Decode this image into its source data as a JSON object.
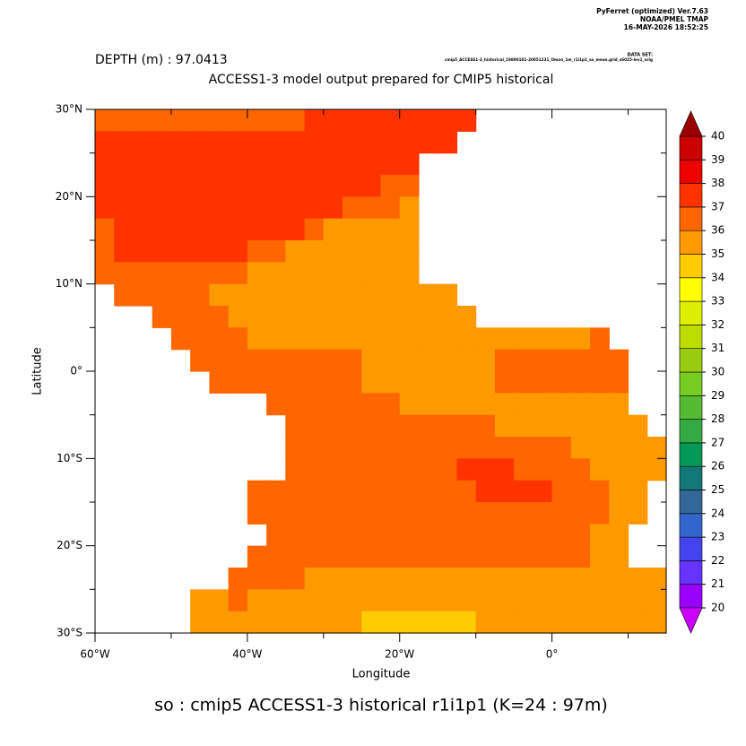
{
  "chart_data": {
    "type": "heatmap",
    "header": [
      "PyFerret (optimized) Ver.7.63",
      "NOAA/PMEL TMAP",
      "16-MAY-2026 18:52:25"
    ],
    "dataset_label": "DATA SET:",
    "dataset": "cmip5_ACCESS1-3_historical_19890101-20051231_Omon_1m_r1i1p1_so_mean.grid_s6025-lev1_orig",
    "subtitle": "DEPTH (m) : 97.0413",
    "title": "ACCESS1-3 model output prepared for CMIP5 historical",
    "xlabel": "Longitude",
    "ylabel": "Latitude",
    "footer": "so : cmip5 ACCESS1-3 historical r1i1p1   (K=24 : 97m)",
    "xlim": [
      -60,
      15
    ],
    "ylim": [
      -30,
      30
    ],
    "xticks": [
      {
        "value": -60,
        "label": "60°W"
      },
      {
        "value": -40,
        "label": "40°W"
      },
      {
        "value": -20,
        "label": "20°W"
      },
      {
        "value": 0,
        "label": "0°"
      }
    ],
    "xminor": [
      -50,
      -30,
      -10,
      10
    ],
    "yticks": [
      {
        "value": 30,
        "label": "30°N"
      },
      {
        "value": 20,
        "label": "20°N"
      },
      {
        "value": 10,
        "label": "10°N"
      },
      {
        "value": 0,
        "label": "0°"
      },
      {
        "value": -10,
        "label": "10°S"
      },
      {
        "value": -20,
        "label": "20°S"
      },
      {
        "value": -30,
        "label": "30°S"
      }
    ],
    "yminor": [
      25,
      15,
      5,
      -5,
      -15,
      -25
    ],
    "x": [
      -58.75,
      -56.25,
      -53.75,
      -51.25,
      -48.75,
      -46.25,
      -43.75,
      -41.25,
      -38.75,
      -36.25,
      -33.75,
      -31.25,
      -28.75,
      -26.25,
      -23.75,
      -21.25,
      -18.75,
      -16.25,
      -13.75,
      -11.25,
      -8.75,
      -6.25,
      -3.75,
      -1.25,
      1.25,
      3.75,
      6.25,
      8.75,
      11.25,
      13.75
    ],
    "y": [
      28.75,
      26.25,
      23.75,
      21.25,
      18.75,
      16.25,
      13.75,
      11.25,
      8.75,
      6.25,
      3.75,
      1.25,
      -1.25,
      -3.75,
      -6.25,
      -8.75,
      -11.25,
      -13.75,
      -16.25,
      -18.75,
      -21.25,
      -23.75,
      -26.25,
      -28.75
    ],
    "z": [
      [
        36.5,
        36.5,
        36.5,
        36.5,
        36.5,
        36.5,
        36.5,
        36.5,
        36.5,
        36.5,
        36.5,
        37.5,
        37.5,
        37.5,
        37.5,
        37.5,
        37.5,
        37.5,
        37.5,
        37.5,
        null,
        null,
        null,
        null,
        null,
        null,
        null,
        null,
        null,
        null
      ],
      [
        37.5,
        37.5,
        37.5,
        37.5,
        37.5,
        37.5,
        37.5,
        37.5,
        37.5,
        37.5,
        37.5,
        37.5,
        37.5,
        37.5,
        37.5,
        37.5,
        37.5,
        37.5,
        37.5,
        null,
        null,
        null,
        null,
        null,
        null,
        null,
        null,
        null,
        null,
        null
      ],
      [
        37.5,
        37.5,
        37.5,
        37.5,
        37.5,
        37.5,
        37.5,
        37.5,
        37.5,
        37.5,
        37.5,
        37.5,
        37.5,
        37.5,
        37.5,
        37.5,
        37.5,
        null,
        null,
        null,
        null,
        null,
        null,
        null,
        null,
        null,
        null,
        null,
        null,
        null
      ],
      [
        37.5,
        37.5,
        37.5,
        37.5,
        37.5,
        37.5,
        37.5,
        37.5,
        37.5,
        37.5,
        37.5,
        37.5,
        37.5,
        37.5,
        37.5,
        36.5,
        36.5,
        null,
        null,
        null,
        null,
        null,
        null,
        null,
        null,
        null,
        null,
        null,
        null,
        null
      ],
      [
        37.5,
        37.5,
        37.5,
        37.5,
        37.5,
        37.5,
        37.5,
        37.5,
        37.5,
        37.5,
        37.5,
        37.5,
        37.5,
        36.5,
        36.5,
        36.5,
        35.5,
        null,
        null,
        null,
        null,
        null,
        null,
        null,
        null,
        null,
        null,
        null,
        null,
        null
      ],
      [
        36.5,
        37.5,
        37.5,
        37.5,
        37.5,
        37.5,
        37.5,
        37.5,
        37.5,
        37.5,
        37.5,
        36.5,
        35.5,
        35.5,
        35.5,
        35.5,
        35.5,
        null,
        null,
        null,
        null,
        null,
        null,
        null,
        null,
        null,
        null,
        null,
        null,
        null
      ],
      [
        36.5,
        37.5,
        37.5,
        37.5,
        37.5,
        37.5,
        37.5,
        37.5,
        36.5,
        36.5,
        35.5,
        35.5,
        35.5,
        35.5,
        35.5,
        35.5,
        35.5,
        null,
        null,
        null,
        null,
        null,
        null,
        null,
        null,
        null,
        null,
        null,
        null,
        null
      ],
      [
        36.5,
        36.5,
        36.5,
        36.5,
        36.5,
        36.5,
        36.5,
        36.5,
        35.5,
        35.5,
        35.5,
        35.5,
        35.5,
        35.5,
        35.5,
        35.5,
        35.5,
        null,
        null,
        null,
        null,
        null,
        null,
        null,
        null,
        null,
        null,
        null,
        null,
        null
      ],
      [
        null,
        36.5,
        36.5,
        36.5,
        36.5,
        36.5,
        35.5,
        35.5,
        35.5,
        35.5,
        35.5,
        35.5,
        35.5,
        35.5,
        35.5,
        35.5,
        35.5,
        35.5,
        35.5,
        null,
        null,
        null,
        null,
        null,
        null,
        null,
        null,
        null,
        null,
        null
      ],
      [
        null,
        null,
        null,
        36.5,
        36.5,
        36.5,
        36.5,
        35.5,
        35.5,
        35.5,
        35.5,
        35.5,
        35.5,
        35.5,
        35.5,
        35.5,
        35.5,
        35.5,
        35.5,
        35.5,
        null,
        null,
        null,
        null,
        null,
        null,
        null,
        null,
        null,
        null
      ],
      [
        null,
        null,
        null,
        null,
        36.5,
        36.5,
        36.5,
        36.5,
        35.5,
        35.5,
        35.5,
        35.5,
        35.5,
        35.5,
        35.5,
        35.5,
        35.5,
        35.5,
        35.5,
        35.5,
        35.5,
        35.5,
        35.5,
        35.5,
        35.5,
        35.5,
        36.5,
        null,
        null,
        null
      ],
      [
        null,
        null,
        null,
        null,
        null,
        36.5,
        36.5,
        36.5,
        36.5,
        36.5,
        36.5,
        36.5,
        36.5,
        36.5,
        35.5,
        35.5,
        35.5,
        35.5,
        35.5,
        35.5,
        35.5,
        36.5,
        36.5,
        36.5,
        36.5,
        36.5,
        36.5,
        36.5,
        null,
        null
      ],
      [
        null,
        null,
        null,
        null,
        null,
        null,
        36.5,
        36.5,
        36.5,
        36.5,
        36.5,
        36.5,
        36.5,
        36.5,
        35.5,
        35.5,
        35.5,
        35.5,
        35.5,
        35.5,
        35.5,
        36.5,
        36.5,
        36.5,
        36.5,
        36.5,
        36.5,
        36.5,
        null,
        null
      ],
      [
        null,
        null,
        null,
        null,
        null,
        null,
        null,
        null,
        null,
        36.5,
        36.5,
        36.5,
        36.5,
        36.5,
        36.5,
        36.5,
        35.5,
        35.5,
        35.5,
        35.5,
        35.5,
        35.5,
        35.5,
        35.5,
        35.5,
        35.5,
        35.5,
        35.5,
        null,
        null
      ],
      [
        null,
        null,
        null,
        null,
        null,
        null,
        null,
        null,
        null,
        null,
        36.5,
        36.5,
        36.5,
        36.5,
        36.5,
        36.5,
        36.5,
        36.5,
        36.5,
        36.5,
        36.5,
        35.5,
        35.5,
        35.5,
        35.5,
        35.5,
        35.5,
        35.5,
        35.5,
        null
      ],
      [
        null,
        null,
        null,
        null,
        null,
        null,
        null,
        null,
        null,
        null,
        36.5,
        36.5,
        36.5,
        36.5,
        36.5,
        36.5,
        36.5,
        36.5,
        36.5,
        36.5,
        36.5,
        36.5,
        36.5,
        36.5,
        36.5,
        35.5,
        35.5,
        35.5,
        35.5,
        35.5
      ],
      [
        null,
        null,
        null,
        null,
        null,
        null,
        null,
        null,
        null,
        null,
        36.5,
        36.5,
        36.5,
        36.5,
        36.5,
        36.5,
        36.5,
        36.5,
        36.5,
        37.5,
        37.5,
        37.5,
        36.5,
        36.5,
        36.5,
        36.5,
        35.5,
        35.5,
        35.5,
        35.5
      ],
      [
        null,
        null,
        null,
        null,
        null,
        null,
        null,
        null,
        36.5,
        36.5,
        36.5,
        36.5,
        36.5,
        36.5,
        36.5,
        36.5,
        36.5,
        36.5,
        36.5,
        36.5,
        37.5,
        37.5,
        37.5,
        37.5,
        36.5,
        36.5,
        36.5,
        35.5,
        35.5,
        null
      ],
      [
        null,
        null,
        null,
        null,
        null,
        null,
        null,
        null,
        36.5,
        36.5,
        36.5,
        36.5,
        36.5,
        36.5,
        36.5,
        36.5,
        36.5,
        36.5,
        36.5,
        36.5,
        36.5,
        36.5,
        36.5,
        36.5,
        36.5,
        36.5,
        36.5,
        35.5,
        35.5,
        null
      ],
      [
        null,
        null,
        null,
        null,
        null,
        null,
        null,
        null,
        null,
        36.5,
        36.5,
        36.5,
        36.5,
        36.5,
        36.5,
        36.5,
        36.5,
        36.5,
        36.5,
        36.5,
        36.5,
        36.5,
        36.5,
        36.5,
        36.5,
        36.5,
        35.5,
        35.5,
        null,
        null
      ],
      [
        null,
        null,
        null,
        null,
        null,
        null,
        null,
        null,
        36.5,
        36.5,
        36.5,
        36.5,
        36.5,
        36.5,
        36.5,
        36.5,
        36.5,
        36.5,
        36.5,
        36.5,
        36.5,
        36.5,
        36.5,
        36.5,
        36.5,
        36.5,
        35.5,
        35.5,
        null,
        null
      ],
      [
        null,
        null,
        null,
        null,
        null,
        null,
        null,
        36.5,
        36.5,
        36.5,
        36.5,
        35.5,
        35.5,
        35.5,
        35.5,
        35.5,
        35.5,
        35.5,
        35.5,
        35.5,
        35.5,
        35.5,
        35.5,
        35.5,
        35.5,
        35.5,
        35.5,
        35.5,
        35.5,
        35.5
      ],
      [
        null,
        null,
        null,
        null,
        null,
        35.5,
        35.5,
        36.5,
        35.5,
        35.5,
        35.5,
        35.5,
        35.5,
        35.5,
        35.5,
        35.5,
        35.5,
        35.5,
        35.5,
        35.5,
        35.5,
        35.5,
        35.5,
        35.5,
        35.5,
        35.5,
        35.5,
        35.5,
        35.5,
        35.5
      ],
      [
        null,
        null,
        null,
        null,
        null,
        35.5,
        35.5,
        35.5,
        35.5,
        35.5,
        35.5,
        35.5,
        35.5,
        35.5,
        34.5,
        34.5,
        34.5,
        34.5,
        34.5,
        34.5,
        35.5,
        35.5,
        35.5,
        35.5,
        35.5,
        35.5,
        35.5,
        35.5,
        35.5,
        35.5
      ]
    ],
    "levels": [
      20,
      21,
      22,
      23,
      24,
      25,
      26,
      27,
      28,
      29,
      30,
      31,
      32,
      33,
      34,
      35,
      36,
      37,
      38,
      39,
      40
    ],
    "colors": [
      "#9900ff",
      "#6633ff",
      "#4444ee",
      "#3366cc",
      "#336699",
      "#117777",
      "#009955",
      "#33aa44",
      "#55bb33",
      "#77cc22",
      "#99cc11",
      "#bbdd00",
      "#ddee00",
      "#ffff00",
      "#ffcc00",
      "#ff9900",
      "#ff6600",
      "#ff3300",
      "#ee0000",
      "#cc0000"
    ],
    "under_color": "#cc00ff",
    "over_color": "#990000"
  }
}
